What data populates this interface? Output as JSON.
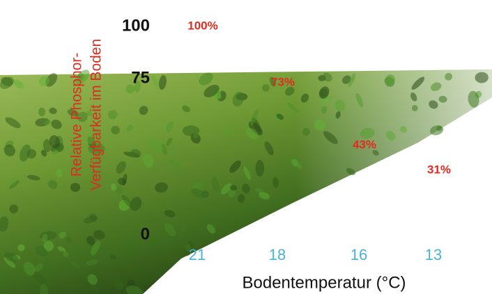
{
  "chart_data": {
    "type": "area",
    "ylabel": [
      "Relative Phosphor-",
      "Verfügbarkeit im Boden"
    ],
    "xlabel": "Bodentemperatur (°C)",
    "categories": [
      "21",
      "18",
      "16",
      "13"
    ],
    "values": [
      100,
      73,
      43,
      31
    ],
    "value_labels": [
      "100%",
      "73%",
      "43%",
      "31%"
    ],
    "ylim": [
      0,
      100
    ],
    "yticks": [
      0,
      75,
      100
    ],
    "color": "#e02b20"
  }
}
